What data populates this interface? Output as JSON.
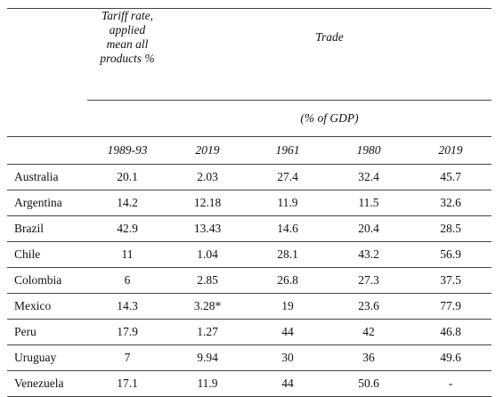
{
  "header": {
    "tariff_lines": [
      "Tariff rate,",
      "applied",
      "mean all",
      "products %"
    ],
    "trade": "Trade",
    "gdp_note": "(% of GDP)",
    "years": [
      "1989-93",
      "2019",
      "1961",
      "1980",
      "2019"
    ]
  },
  "rows": [
    {
      "country": "Australia",
      "tariff_1989_93": "20.1",
      "tariff_2019": "2.03",
      "trade_1961": "27.4",
      "trade_1980": "32.4",
      "trade_2019": "45.7"
    },
    {
      "country": "Argentina",
      "tariff_1989_93": "14.2",
      "tariff_2019": "12.18",
      "trade_1961": "11.9",
      "trade_1980": "11.5",
      "trade_2019": "32.6"
    },
    {
      "country": "Brazil",
      "tariff_1989_93": "42.9",
      "tariff_2019": "13.43",
      "trade_1961": "14.6",
      "trade_1980": "20.4",
      "trade_2019": "28.5"
    },
    {
      "country": "Chile",
      "tariff_1989_93": "11",
      "tariff_2019": "1.04",
      "trade_1961": "28.1",
      "trade_1980": "43.2",
      "trade_2019": "56.9"
    },
    {
      "country": "Colombia",
      "tariff_1989_93": "6",
      "tariff_2019": "2.85",
      "trade_1961": "26.8",
      "trade_1980": "27.3",
      "trade_2019": "37.5"
    },
    {
      "country": "Mexico",
      "tariff_1989_93": "14.3",
      "tariff_2019": "3.28*",
      "trade_1961": "19",
      "trade_1980": "23.6",
      "trade_2019": "77.9"
    },
    {
      "country": "Peru",
      "tariff_1989_93": "17.9",
      "tariff_2019": "1.27",
      "trade_1961": "44",
      "trade_1980": "42",
      "trade_2019": "46.8"
    },
    {
      "country": "Uruguay",
      "tariff_1989_93": "7",
      "tariff_2019": "9.94",
      "trade_1961": "30",
      "trade_1980": "36",
      "trade_2019": "49.6"
    },
    {
      "country": "Venezuela",
      "tariff_1989_93": "17.1",
      "tariff_2019": "11.9",
      "trade_1961": "44",
      "trade_1980": "50.6",
      "trade_2019": "-"
    }
  ]
}
